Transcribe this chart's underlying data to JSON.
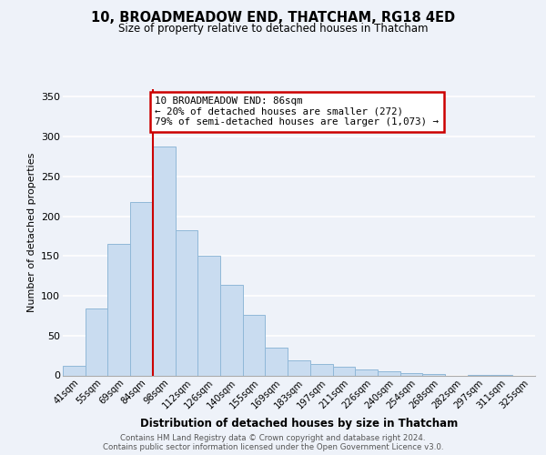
{
  "title": "10, BROADMEADOW END, THATCHAM, RG18 4ED",
  "subtitle": "Size of property relative to detached houses in Thatcham",
  "xlabel": "Distribution of detached houses by size in Thatcham",
  "ylabel": "Number of detached properties",
  "categories": [
    "41sqm",
    "55sqm",
    "69sqm",
    "84sqm",
    "98sqm",
    "112sqm",
    "126sqm",
    "140sqm",
    "155sqm",
    "169sqm",
    "183sqm",
    "197sqm",
    "211sqm",
    "226sqm",
    "240sqm",
    "254sqm",
    "268sqm",
    "282sqm",
    "297sqm",
    "311sqm",
    "325sqm"
  ],
  "values": [
    12,
    84,
    165,
    218,
    287,
    182,
    150,
    114,
    76,
    35,
    19,
    14,
    11,
    8,
    5,
    3,
    2,
    0,
    1,
    1,
    0
  ],
  "bar_color": "#c9dcf0",
  "bar_edge_color": "#90b8d8",
  "vline_x": 3.5,
  "vline_color": "#cc0000",
  "annotation_text": "10 BROADMEADOW END: 86sqm\n← 20% of detached houses are smaller (272)\n79% of semi-detached houses are larger (1,073) →",
  "annotation_box_color": "#ffffff",
  "annotation_box_edge_color": "#cc0000",
  "ylim": [
    0,
    360
  ],
  "yticks": [
    0,
    50,
    100,
    150,
    200,
    250,
    300,
    350
  ],
  "footer_line1": "Contains HM Land Registry data © Crown copyright and database right 2024.",
  "footer_line2": "Contains public sector information licensed under the Open Government Licence v3.0.",
  "background_color": "#eef2f9",
  "plot_background_color": "#eef2f9"
}
